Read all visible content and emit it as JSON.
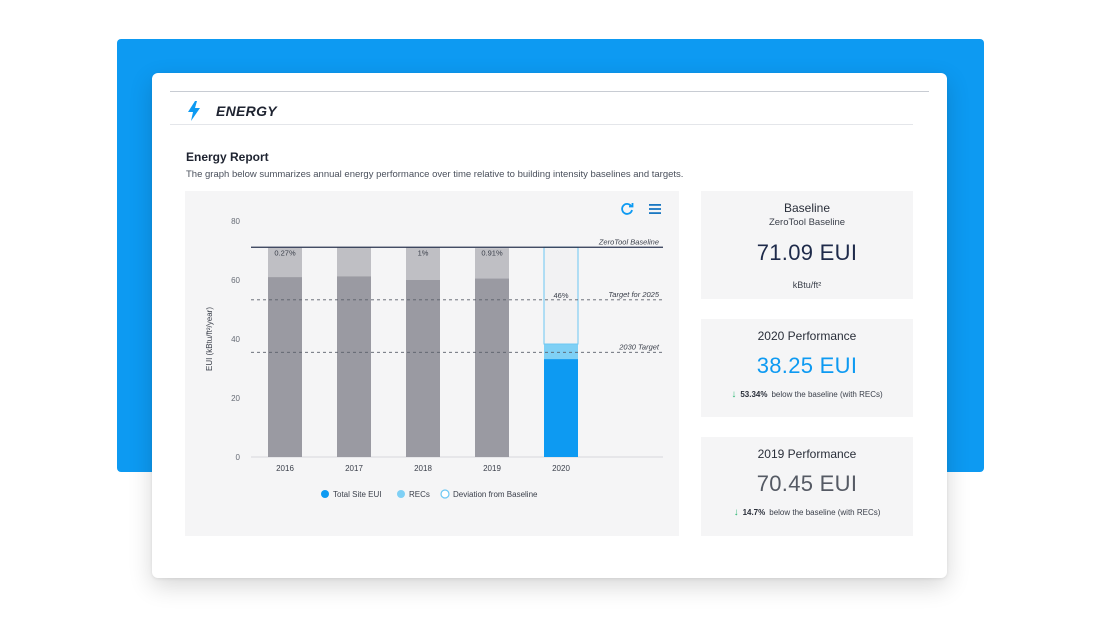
{
  "header": {
    "title": "ENERGY",
    "icon": "lightning-bolt-icon"
  },
  "report": {
    "title": "Energy Report",
    "description": "The graph below summarizes annual energy performance over time relative to building intensity baselines and targets."
  },
  "chart_toolbar": {
    "refresh_icon": "refresh-icon",
    "menu_icon": "hamburger-menu-icon"
  },
  "chart_data": {
    "type": "bar",
    "categories": [
      "2016",
      "2017",
      "2018",
      "2019",
      "2020"
    ],
    "series": [
      {
        "name": "Total Site EUI",
        "values": [
          61,
          61.3,
          60.1,
          60.5,
          33.2
        ],
        "color": "#9a9aa2",
        "highlight_color": "#0d9af2"
      },
      {
        "name": "RECs",
        "values": [
          9.9,
          9.8,
          10.9,
          10.3,
          5.1
        ],
        "color": "#bfbfc4",
        "highlight_color": "#7fd0f5"
      },
      {
        "name": "Deviation from Baseline",
        "values": [
          null,
          null,
          null,
          null,
          32.8
        ],
        "color": "#f2f2f3"
      }
    ],
    "bar_labels": [
      "0.27%",
      "",
      "1%",
      "0.91%",
      "46%"
    ],
    "reference_lines": [
      {
        "label": "ZeroTool Baseline",
        "value": 71.09,
        "style": "solid"
      },
      {
        "label": "Target for 2025",
        "value": 53.3,
        "style": "dashed"
      },
      {
        "label": "2030 Target",
        "value": 35.5,
        "style": "dashed"
      }
    ],
    "ylabel": "EUI (kBtu/ft²/year)",
    "ylim": [
      0,
      80
    ],
    "yticks": [
      0,
      20,
      40,
      60,
      80
    ],
    "legend": "bottom"
  },
  "stats": {
    "baseline": {
      "title": "Baseline",
      "subtitle": "ZeroTool Baseline",
      "value": "71.09 EUI",
      "unit": "kBtu/ft²"
    },
    "perf2020": {
      "title": "2020 Performance",
      "value": "38.25 EUI",
      "pct": "53.34%",
      "note": "below the baseline (with RECs)"
    },
    "perf2019": {
      "title": "2019 Performance",
      "value": "70.45 EUI",
      "pct": "14.7%",
      "note": "below the baseline (with RECs)"
    }
  },
  "colors": {
    "accent": "#0d9af2",
    "dark_value": "#1e2a4a",
    "gray_value": "#555a64",
    "positive": "#2bb673"
  }
}
